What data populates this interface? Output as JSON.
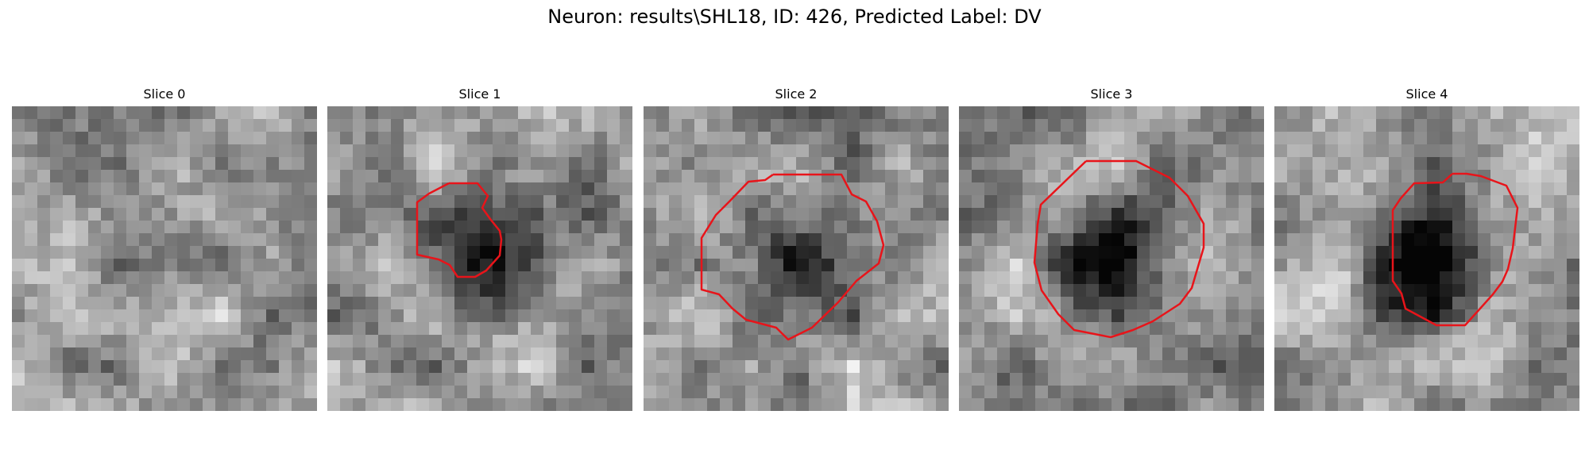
{
  "figure": {
    "title": "Neuron: results\\SHL18, ID: 426, Predicted Label: DV"
  },
  "outline_color": "#e8141a",
  "slices": [
    {
      "title": "Slice 0",
      "has_outline": false,
      "seed": 11,
      "dark_center": 0.0
    },
    {
      "title": "Slice 1",
      "has_outline": true,
      "seed": 23,
      "dark_center": 0.9
    },
    {
      "title": "Slice 2",
      "has_outline": true,
      "seed": 37,
      "dark_center": 0.7
    },
    {
      "title": "Slice 3",
      "has_outline": true,
      "seed": 53,
      "dark_center": 0.65
    },
    {
      "title": "Slice 4",
      "has_outline": true,
      "seed": 71,
      "dark_center": 0.95
    }
  ]
}
